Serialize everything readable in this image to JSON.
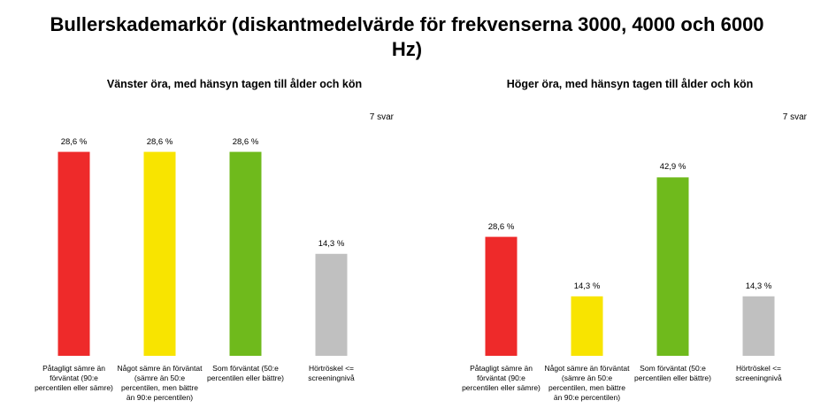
{
  "title": "Bullerskademarkör (diskantmedelvärde för frekvenserna 3000, 4000 och 6000 Hz)",
  "chart_data": [
    {
      "type": "bar",
      "title": "Vänster öra, med hänsyn tagen till ålder och kön",
      "note": "7 svar",
      "categories": [
        "Påtagligt sämre än förväntat (90:e percentilen eller sämre)",
        "Något sämre än förväntat (sämre än 50:e percentilen, men bättre än 90:e percentilen)",
        "Som förväntat (50:e percentilen eller bättre)",
        "Hörtröskel <= screeningnivå"
      ],
      "values": [
        28.6,
        28.6,
        28.6,
        14.3
      ],
      "value_labels": [
        "28,6 %",
        "28,6 %",
        "28,6 %",
        "14,3 %"
      ],
      "colors": [
        "#ee2a2a",
        "#f8e400",
        "#6fba1c",
        "#c0c0c0"
      ],
      "ylim": [
        0,
        35
      ]
    },
    {
      "type": "bar",
      "title": "Höger öra, med hänsyn tagen till ålder och kön",
      "note": "7 svar",
      "categories": [
        "Påtagligt sämre än förväntat (90:e percentilen eller sämre)",
        "Något sämre än förväntat (sämre än 50:e percentilen, men bättre än 90:e percentilen)",
        "Som förväntat (50:e percentilen eller bättre)",
        "Hörtröskel <= screeningnivå"
      ],
      "values": [
        28.6,
        14.3,
        42.9,
        14.3
      ],
      "value_labels": [
        "28,6 %",
        "14,3 %",
        "42,9 %",
        "14,3 %"
      ],
      "colors": [
        "#ee2a2a",
        "#f8e400",
        "#6fba1c",
        "#c0c0c0"
      ],
      "ylim": [
        0,
        60
      ]
    }
  ]
}
